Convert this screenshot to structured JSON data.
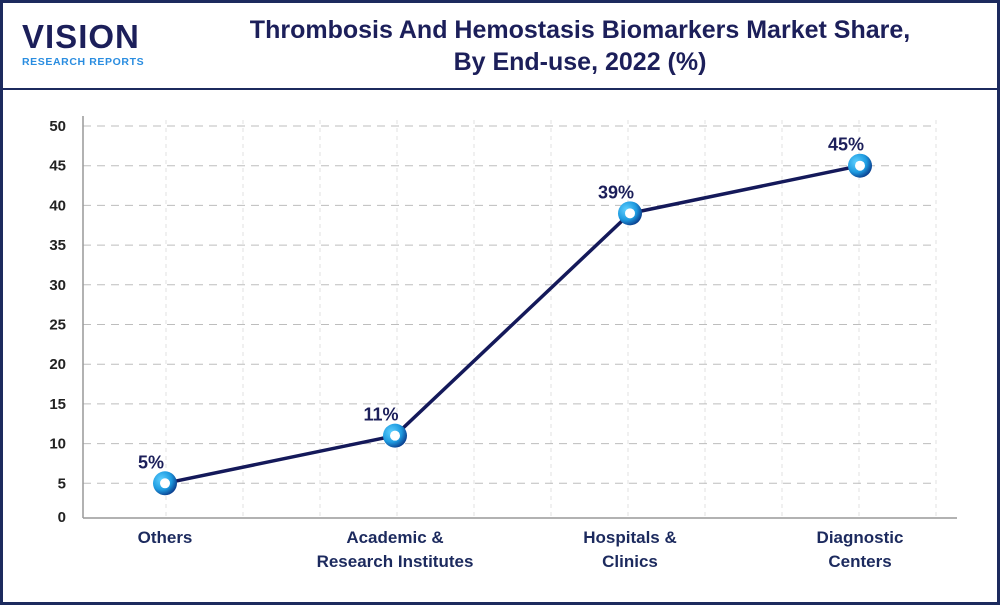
{
  "logo": {
    "main": "VISION",
    "sub": "RESEARCH REPORTS"
  },
  "header": {
    "title_line1": "Thrombosis And Hemostasis Biomarkers Market Share,",
    "title_line2": "By End-use, 2022 (%)"
  },
  "chart_data": {
    "type": "line",
    "title": "Thrombosis And Hemostasis Biomarkers Market Share, By End-use, 2022 (%)",
    "categories": [
      [
        "Others"
      ],
      [
        "Academic &",
        "Research Institutes"
      ],
      [
        "Hospitals &",
        "Clinics"
      ],
      [
        "Diagnostic",
        "Centers"
      ]
    ],
    "values": [
      5,
      11,
      39,
      45
    ],
    "data_labels": [
      "5%",
      "11%",
      "39%",
      "45%"
    ],
    "ylim": [
      0,
      50
    ],
    "yticks": [
      0,
      5,
      10,
      15,
      20,
      25,
      30,
      35,
      40,
      45,
      50
    ],
    "grid": true,
    "colors": {
      "line": "#14195a",
      "marker_outer": "#1e9be0",
      "marker_inner": "#ffffff"
    }
  }
}
